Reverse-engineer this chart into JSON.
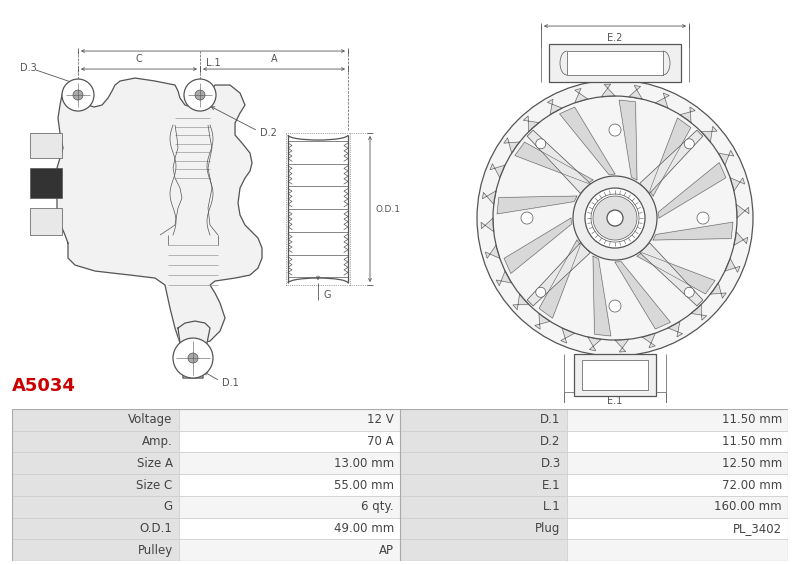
{
  "title": "A5034",
  "title_color": "#cc0000",
  "bg_color": "#ffffff",
  "table_rows": [
    [
      "Voltage",
      "12 V",
      "D.1",
      "11.50 mm"
    ],
    [
      "Amp.",
      "70 A",
      "D.2",
      "11.50 mm"
    ],
    [
      "Size A",
      "13.00 mm",
      "D.3",
      "12.50 mm"
    ],
    [
      "Size C",
      "55.00 mm",
      "E.1",
      "72.00 mm"
    ],
    [
      "G",
      "6 qty.",
      "L.1",
      "160.00 mm"
    ],
    [
      "O.D.1",
      "49.00 mm",
      "Plug",
      "PL_3402"
    ],
    [
      "Pulley",
      "AP",
      "",
      ""
    ]
  ],
  "table_font_size": 8.5,
  "fig_width": 8.0,
  "fig_height": 5.64,
  "line_color": "#555555",
  "dim_color": "#555555"
}
